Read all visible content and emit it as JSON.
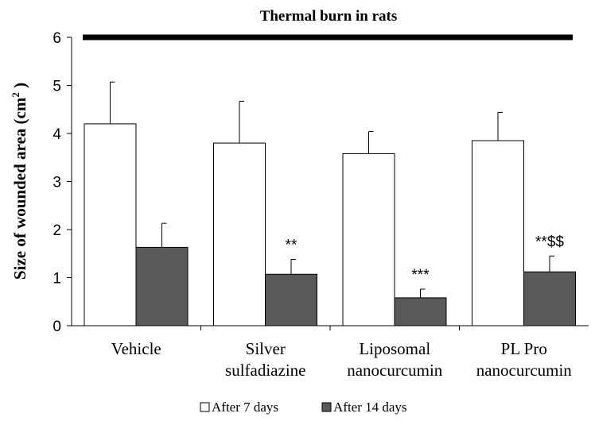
{
  "chart_data": {
    "type": "bar",
    "title": "Thermal burn in rats",
    "ylabel_main": "Size of wounded area (cm",
    "ylabel_sup": "2",
    "ylabel_close": " )",
    "xlabel": "",
    "ylim": [
      0,
      6
    ],
    "yticks": [
      "0",
      "1",
      "2",
      "3",
      "4",
      "5",
      "6"
    ],
    "categories": [
      [
        "Vehicle"
      ],
      [
        "Silver",
        "sulfadiazine"
      ],
      [
        "Liposomal",
        "nanocurcumin"
      ],
      [
        "PL Pro",
        "nanocurcumin"
      ]
    ],
    "series": [
      {
        "name": "After 7 days",
        "color": "#ffffff",
        "values": [
          4.2,
          3.8,
          3.58,
          3.85
        ],
        "errors": [
          0.87,
          0.87,
          0.46,
          0.59
        ],
        "annotations": [
          "",
          "",
          "",
          ""
        ]
      },
      {
        "name": "After 14 days",
        "color": "#595959",
        "values": [
          1.63,
          1.07,
          0.58,
          1.12
        ],
        "errors": [
          0.5,
          0.31,
          0.18,
          0.33
        ],
        "annotations": [
          "",
          "**",
          "***",
          "**$$"
        ]
      }
    ],
    "reference_line": {
      "y": 6
    },
    "legend": "bottom"
  }
}
